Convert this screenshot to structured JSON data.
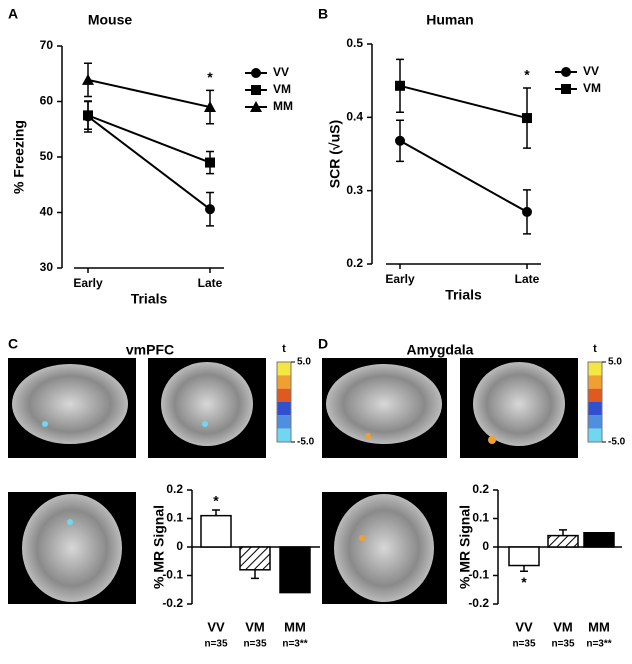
{
  "chart_data": [
    {
      "type": "line",
      "label": "A",
      "title": "Mouse",
      "xlabel": "Trials",
      "ylabel": "% Freezing",
      "categories": [
        "Early",
        "Late"
      ],
      "ylim": [
        30,
        70
      ],
      "yticks": [
        30,
        40,
        50,
        60,
        70
      ],
      "legend": "right",
      "series": [
        {
          "name": "VV",
          "color": "#000000",
          "marker": "circle",
          "values": [
            57.3,
            40.6
          ],
          "errors": [
            2.8,
            3.0
          ]
        },
        {
          "name": "VM",
          "color": "#000000",
          "marker": "square",
          "values": [
            57.5,
            49.0
          ],
          "errors": [
            2.5,
            2.0
          ]
        },
        {
          "name": "MM",
          "color": "#000000",
          "marker": "triangle",
          "values": [
            63.9,
            59.0
          ],
          "errors": [
            3.0,
            3.0
          ]
        }
      ],
      "annotations": [
        {
          "category": "Late",
          "text": "*",
          "position": "above"
        }
      ]
    },
    {
      "type": "line",
      "label": "B",
      "title": "Human",
      "xlabel": "Trials",
      "ylabel": "SCR (√uS)",
      "categories": [
        "Early",
        "Late"
      ],
      "ylim": [
        0.2,
        0.5
      ],
      "yticks": [
        0.2,
        0.3,
        0.4,
        0.5
      ],
      "legend": "right",
      "series": [
        {
          "name": "VV",
          "color": "#000000",
          "marker": "circle",
          "values": [
            0.368,
            0.271
          ],
          "errors": [
            0.028,
            0.03
          ]
        },
        {
          "name": "VM",
          "color": "#000000",
          "marker": "square",
          "values": [
            0.443,
            0.399
          ],
          "errors": [
            0.036,
            0.041
          ]
        }
      ],
      "annotations": [
        {
          "category": "Late",
          "text": "*",
          "position": "above"
        }
      ]
    },
    {
      "type": "bar",
      "label": "C",
      "ylabel": "% MR Signal",
      "categories": [
        "VV",
        "VM",
        "MM"
      ],
      "sublabels": [
        "n=35",
        "n=35",
        "n=3**"
      ],
      "values": [
        0.11,
        -0.08,
        -0.16
      ],
      "errors": [
        0.02,
        0.03,
        null
      ],
      "bar_styles": [
        "open",
        "hatched",
        "filled"
      ],
      "ylim": [
        -0.2,
        0.2
      ],
      "yticks": [
        0.2,
        0.1,
        0,
        -0.1,
        -0.2
      ],
      "annotations": [
        {
          "category": "VV",
          "text": "*",
          "position": "above"
        }
      ]
    },
    {
      "type": "bar",
      "label": "D",
      "ylabel": "% MR Signal",
      "categories": [
        "VV",
        "VM",
        "MM"
      ],
      "sublabels": [
        "n=35",
        "n=35",
        "n=3**"
      ],
      "values": [
        -0.065,
        0.04,
        0.05
      ],
      "errors": [
        0.02,
        0.02,
        null
      ],
      "bar_styles": [
        "open",
        "hatched",
        "filled"
      ],
      "ylim": [
        -0.2,
        0.2
      ],
      "yticks": [
        0.2,
        0.1,
        0,
        -0.1,
        -0.2
      ],
      "annotations": [
        {
          "category": "VV",
          "text": "*",
          "position": "below"
        }
      ]
    }
  ],
  "brain_panels": [
    {
      "title": "vmPFC",
      "colorbar": {
        "title": "t",
        "colors": [
          "#f5e642",
          "#f0a030",
          "#e05a20",
          "#3050d0",
          "#4f8fe0",
          "#6fd8f0"
        ],
        "ticks": [
          {
            "value": 5,
            "label": "5.0"
          },
          {
            "value": -5,
            "label": "-5.0"
          }
        ]
      }
    },
    {
      "title": "Amygdala",
      "colorbar": {
        "title": "t",
        "colors": [
          "#f5e642",
          "#f0a030",
          "#e05a20",
          "#3050d0",
          "#4f8fe0",
          "#6fd8f0"
        ],
        "ticks": [
          {
            "value": 5,
            "label": "5.0"
          },
          {
            "value": -5,
            "label": "-5.0"
          }
        ]
      }
    }
  ]
}
